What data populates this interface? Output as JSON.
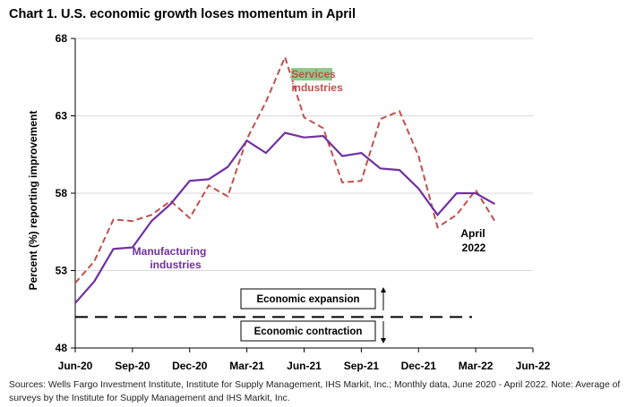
{
  "title": "Chart 1. U.S. economic growth loses momentum in April",
  "source": "Sources: Wells Fargo Investment Institute, Institute for Supply Management, IHS Markit, Inc.; Monthly data, June 2020 - April 2022. Note: Average of surveys by the Institute for Supply Management and IHS Markit, Inc.",
  "colors": {
    "manufacturing": "#7030A0",
    "services": "#C0504D",
    "services_highlight": "#8FC98A",
    "threshold": "#000000"
  },
  "chart_data": {
    "type": "line",
    "ylabel": "Percent (%) reporting improvement",
    "ylim": [
      48,
      68
    ],
    "yticks": [
      48,
      53,
      58,
      63,
      68
    ],
    "x": [
      "2020-06",
      "2020-07",
      "2020-08",
      "2020-09",
      "2020-10",
      "2020-11",
      "2020-12",
      "2021-01",
      "2021-02",
      "2021-03",
      "2021-04",
      "2021-05",
      "2021-06",
      "2021-07",
      "2021-08",
      "2021-09",
      "2021-10",
      "2021-11",
      "2021-12",
      "2022-01",
      "2022-02",
      "2022-03",
      "2022-04"
    ],
    "xticks": [
      {
        "date": "2020-06",
        "label": "Jun-20"
      },
      {
        "date": "2020-09",
        "label": "Sep-20"
      },
      {
        "date": "2020-12",
        "label": "Dec-20"
      },
      {
        "date": "2021-03",
        "label": "Mar-21"
      },
      {
        "date": "2021-06",
        "label": "Jun-21"
      },
      {
        "date": "2021-09",
        "label": "Sep-21"
      },
      {
        "date": "2021-12",
        "label": "Dec-21"
      },
      {
        "date": "2022-03",
        "label": "Mar-22"
      },
      {
        "date": "2022-06",
        "label": "Jun-22"
      }
    ],
    "series": [
      {
        "name": "Manufacturing industries",
        "style": "solid",
        "values": [
          50.9,
          52.3,
          54.4,
          54.5,
          56.2,
          57.3,
          58.8,
          58.9,
          59.7,
          61.4,
          60.6,
          61.9,
          61.6,
          61.7,
          60.4,
          60.6,
          59.6,
          59.5,
          58.3,
          56.6,
          58.0,
          58.0,
          57.3
        ]
      },
      {
        "name": "Services industries",
        "style": "dashed",
        "values": [
          52.2,
          53.6,
          56.3,
          56.2,
          56.6,
          57.5,
          56.4,
          58.5,
          57.8,
          61.5,
          63.9,
          66.8,
          62.9,
          62.2,
          58.7,
          58.8,
          62.8,
          63.3,
          60.4,
          55.8,
          56.6,
          58.2,
          56.2
        ]
      }
    ],
    "threshold": 50,
    "annotations": {
      "manufacturing_line1": "Manufacturing",
      "manufacturing_line2": "industries",
      "services_line1": "Services",
      "services_line2": "industries",
      "april_line1": "April",
      "april_line2": "2022",
      "expansion": "Economic expansion",
      "contraction": "Economic contraction"
    }
  }
}
